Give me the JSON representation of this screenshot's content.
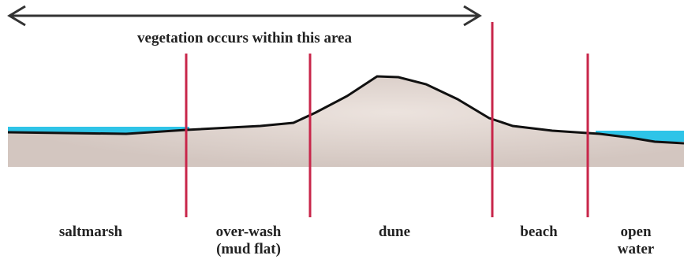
{
  "arrow_label": "vegetation occurs within this area",
  "zones": [
    {
      "lines": [
        "saltmarsh"
      ]
    },
    {
      "lines": [
        "over-wash",
        "(mud flat)"
      ]
    },
    {
      "lines": [
        "dune"
      ]
    },
    {
      "lines": [
        "beach"
      ]
    },
    {
      "lines": [
        "open",
        "water"
      ]
    }
  ]
}
